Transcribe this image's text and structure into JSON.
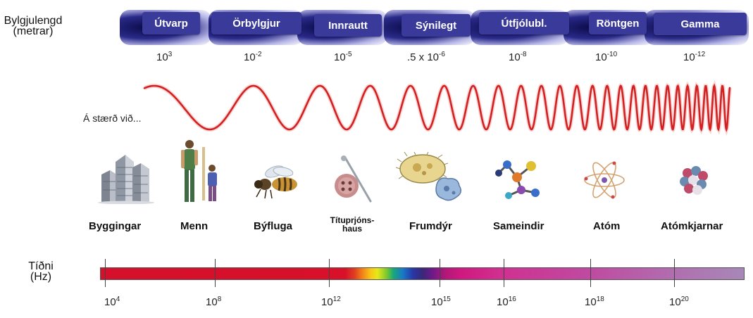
{
  "wavelength_axis": {
    "title_line1": "Bylgjulengd",
    "title_line2": "(metrar)"
  },
  "bands": [
    {
      "label": "Útvarp"
    },
    {
      "label": "Örbylgjur"
    },
    {
      "label": "Innrautt"
    },
    {
      "label": "Sýnilegt"
    },
    {
      "label": "Útfjólubl."
    },
    {
      "label": "Röntgen"
    },
    {
      "label": "Gamma"
    }
  ],
  "wavelengths": [
    {
      "base": "10",
      "exp": "3"
    },
    {
      "base": "10",
      "exp": "-2"
    },
    {
      "base": "10",
      "exp": "-5"
    },
    {
      "base": ".5 x 10",
      "exp": "-6"
    },
    {
      "base": "10",
      "exp": "-8"
    },
    {
      "base": "10",
      "exp": "-10"
    },
    {
      "base": "10",
      "exp": "-12"
    }
  ],
  "size_caption": "Á stærð við...",
  "objects": [
    {
      "label": "Byggingar",
      "icon": "buildings-icon"
    },
    {
      "label": "Menn",
      "icon": "people-icon"
    },
    {
      "label": "Býfluga",
      "icon": "bee-icon"
    },
    {
      "label_line1": "Títuprjóns-",
      "label_line2": "haus",
      "icon": "pin-head-icon"
    },
    {
      "label": "Frumdýr",
      "icon": "protozoa-icon"
    },
    {
      "label": "Sameindir",
      "icon": "molecule-icon"
    },
    {
      "label": "Atóm",
      "icon": "atom-icon"
    },
    {
      "label": "Atómkjarnar",
      "icon": "nucleus-icon"
    }
  ],
  "frequency_axis": {
    "title_line1": "Tíðni",
    "title_line2": "(Hz)"
  },
  "frequencies": [
    {
      "base": "10",
      "exp": "4"
    },
    {
      "base": "10",
      "exp": "8"
    },
    {
      "base": "10",
      "exp": "12"
    },
    {
      "base": "10",
      "exp": "15"
    },
    {
      "base": "10",
      "exp": "16"
    },
    {
      "base": "10",
      "exp": "18"
    },
    {
      "base": "10",
      "exp": "20"
    }
  ],
  "colors": {
    "wave": "#d42020",
    "band_label_bg": "#3a3a9a"
  }
}
